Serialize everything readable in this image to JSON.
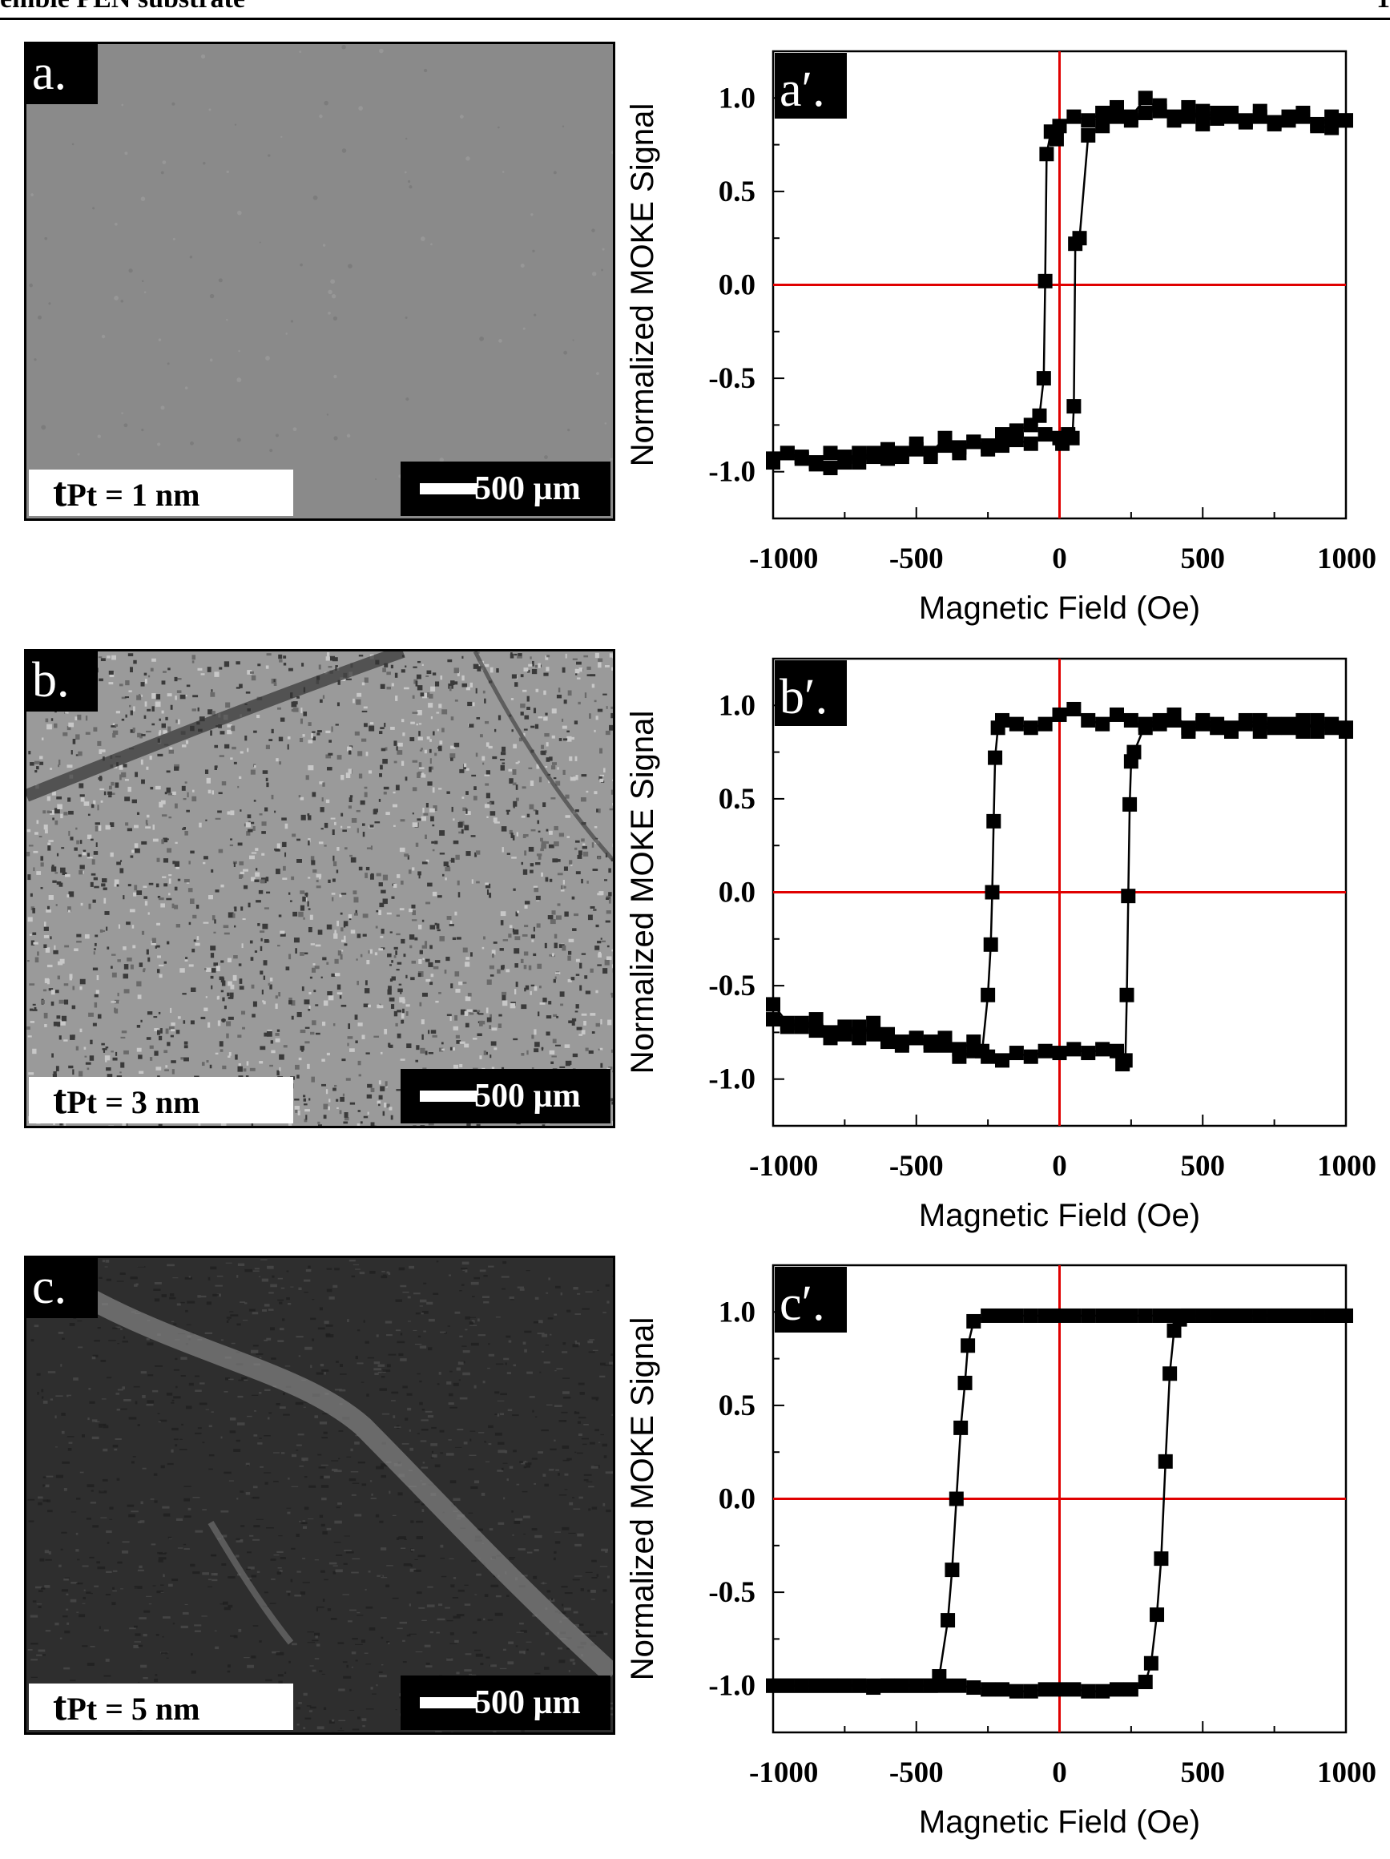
{
  "header": {
    "left": "emble PEN substrate",
    "right": "1"
  },
  "micrographs": [
    {
      "label": "a.",
      "t_sym": "t",
      "t_sub": "Pt = 1 nm",
      "scale": "500 µm",
      "tone": "smooth"
    },
    {
      "label": "b.",
      "t_sym": "t",
      "t_sub": "Pt = 3 nm",
      "scale": "500 µm",
      "tone": "speckled"
    },
    {
      "label": "c.",
      "t_sym": "t",
      "t_sub": "Pt = 5 nm",
      "scale": "500 µm",
      "tone": "dark"
    }
  ],
  "colors": {
    "axis": "#000000",
    "crosshair": "#e00000",
    "marker": "#000000"
  },
  "chart_data": [
    {
      "type": "scatter",
      "panel_label": "a′.",
      "xlabel": "Magnetic Field (Oe)",
      "ylabel": "Normalized MOKE Signal",
      "xlim": [
        -1000,
        1000
      ],
      "ylim": [
        -1.25,
        1.25
      ],
      "xticks": [
        "-1000",
        "-500",
        "0",
        "500",
        "1000"
      ],
      "yticks": [
        "1.0",
        "0.5",
        "0.0",
        "-0.5",
        "-1.0"
      ],
      "coercive_field": 45,
      "series": [
        {
          "x": [
            -1000,
            -950,
            -900,
            -850,
            -800,
            -750,
            -700,
            -650,
            -600,
            -550,
            -500,
            -450,
            -400,
            -350,
            -300,
            -250,
            -200,
            -150,
            -100,
            -70,
            -55,
            -50,
            -45,
            -30,
            -10,
            0,
            50,
            100,
            150,
            200,
            250,
            300,
            350,
            400,
            450,
            500,
            550,
            600,
            650,
            700,
            750,
            800,
            850,
            900,
            950,
            1000
          ],
          "y": [
            -0.95,
            -0.9,
            -0.93,
            -0.95,
            -0.98,
            -0.95,
            -0.9,
            -0.92,
            -0.88,
            -0.92,
            -0.85,
            -0.9,
            -0.82,
            -0.87,
            -0.84,
            -0.86,
            -0.8,
            -0.78,
            -0.75,
            -0.7,
            -0.5,
            0.02,
            0.7,
            0.82,
            0.78,
            0.85,
            0.9,
            0.88,
            0.92,
            0.95,
            0.9,
            1.0,
            0.93,
            0.88,
            0.9,
            0.93,
            0.89,
            0.92,
            0.87,
            0.9,
            0.86,
            0.88,
            0.9,
            0.85,
            0.84,
            0.88
          ]
        },
        {
          "x": [
            1000,
            950,
            900,
            850,
            800,
            750,
            700,
            650,
            600,
            550,
            500,
            450,
            400,
            350,
            300,
            250,
            200,
            150,
            100,
            70,
            55,
            50,
            45,
            30,
            10,
            0,
            -50,
            -100,
            -150,
            -200,
            -250,
            -300,
            -350,
            -400,
            -450,
            -500,
            -550,
            -600,
            -650,
            -700,
            -750,
            -800,
            -850,
            -900,
            -950,
            -1000
          ],
          "y": [
            0.88,
            0.9,
            0.86,
            0.92,
            0.9,
            0.87,
            0.93,
            0.88,
            0.9,
            0.92,
            0.86,
            0.95,
            0.9,
            0.96,
            0.92,
            0.88,
            0.9,
            0.85,
            0.8,
            0.25,
            0.22,
            -0.65,
            -0.82,
            -0.8,
            -0.85,
            -0.82,
            -0.8,
            -0.85,
            -0.83,
            -0.86,
            -0.88,
            -0.84,
            -0.9,
            -0.86,
            -0.92,
            -0.88,
            -0.9,
            -0.93,
            -0.9,
            -0.95,
            -0.92,
            -0.9,
            -0.96,
            -0.92,
            -0.9,
            -0.93
          ]
        }
      ]
    },
    {
      "type": "scatter",
      "panel_label": "b′.",
      "xlabel": "Magnetic Field (Oe)",
      "ylabel": "Normalized MOKE Signal",
      "xlim": [
        -1000,
        1000
      ],
      "ylim": [
        -1.25,
        1.25
      ],
      "xticks": [
        "-1000",
        "-500",
        "0",
        "500",
        "1000"
      ],
      "yticks": [
        "1.0",
        "0.5",
        "0.0",
        "-0.5",
        "-1.0"
      ],
      "coercive_field": 235,
      "series": [
        {
          "x": [
            -1000,
            -950,
            -900,
            -850,
            -800,
            -750,
            -700,
            -650,
            -600,
            -550,
            -500,
            -450,
            -400,
            -350,
            -300,
            -270,
            -250,
            -240,
            -235,
            -230,
            -225,
            -215,
            -200,
            -150,
            -100,
            -50,
            0,
            50,
            100,
            150,
            200,
            250,
            300,
            350,
            400,
            450,
            500,
            550,
            600,
            650,
            700,
            750,
            800,
            850,
            900,
            950,
            1000
          ],
          "y": [
            -0.6,
            -0.7,
            -0.72,
            -0.68,
            -0.75,
            -0.72,
            -0.78,
            -0.7,
            -0.76,
            -0.8,
            -0.78,
            -0.82,
            -0.78,
            -0.84,
            -0.8,
            -0.85,
            -0.55,
            -0.28,
            0.0,
            0.38,
            0.72,
            0.88,
            0.92,
            0.9,
            0.88,
            0.9,
            0.95,
            0.98,
            0.92,
            0.9,
            0.95,
            0.92,
            0.88,
            0.9,
            0.92,
            0.86,
            0.9,
            0.88,
            0.86,
            0.9,
            0.92,
            0.88,
            0.9,
            0.86,
            0.92,
            0.88,
            0.86
          ]
        },
        {
          "x": [
            1000,
            950,
            900,
            850,
            800,
            750,
            700,
            650,
            600,
            550,
            500,
            450,
            400,
            350,
            300,
            260,
            250,
            245,
            240,
            235,
            230,
            220,
            200,
            150,
            100,
            50,
            0,
            -50,
            -100,
            -150,
            -200,
            -250,
            -300,
            -350,
            -400,
            -450,
            -500,
            -550,
            -600,
            -650,
            -700,
            -750,
            -800,
            -850,
            -900,
            -950,
            -1000
          ],
          "y": [
            0.88,
            0.9,
            0.86,
            0.92,
            0.88,
            0.9,
            0.86,
            0.92,
            0.88,
            0.9,
            0.92,
            0.88,
            0.95,
            0.92,
            0.9,
            0.75,
            0.7,
            0.47,
            -0.02,
            -0.55,
            -0.9,
            -0.92,
            -0.85,
            -0.84,
            -0.86,
            -0.84,
            -0.86,
            -0.85,
            -0.88,
            -0.86,
            -0.9,
            -0.88,
            -0.85,
            -0.88,
            -0.82,
            -0.8,
            -0.78,
            -0.82,
            -0.8,
            -0.76,
            -0.72,
            -0.76,
            -0.78,
            -0.74,
            -0.7,
            -0.72,
            -0.68
          ]
        }
      ]
    },
    {
      "type": "scatter",
      "panel_label": "c′.",
      "xlabel": "Magnetic Field (Oe)",
      "ylabel": "Normalized MOKE Signal",
      "xlim": [
        -1000,
        1000
      ],
      "ylim": [
        -1.25,
        1.25
      ],
      "xticks": [
        "-1000",
        "-500",
        "0",
        "500",
        "1000"
      ],
      "yticks": [
        "1.0",
        "0.5",
        "0.0",
        "-0.5",
        "-1.0"
      ],
      "coercive_field": 360,
      "series": [
        {
          "x": [
            -1000,
            -950,
            -900,
            -850,
            -800,
            -750,
            -700,
            -650,
            -600,
            -550,
            -500,
            -450,
            -420,
            -390,
            -375,
            -360,
            -345,
            -330,
            -320,
            -300,
            -250,
            -200,
            -150,
            -100,
            -50,
            0,
            50,
            100,
            150,
            200,
            250,
            300,
            350,
            400,
            450,
            500,
            550,
            600,
            650,
            700,
            750,
            800,
            850,
            900,
            950,
            1000
          ],
          "y": [
            -1.0,
            -1.0,
            -1.0,
            -1.0,
            -1.0,
            -1.0,
            -1.0,
            -1.01,
            -1.0,
            -1.0,
            -1.0,
            -1.0,
            -0.95,
            -0.65,
            -0.38,
            0.0,
            0.38,
            0.62,
            0.82,
            0.95,
            0.98,
            0.98,
            0.98,
            0.98,
            0.98,
            0.98,
            0.98,
            0.98,
            0.98,
            0.98,
            0.98,
            0.98,
            0.98,
            0.98,
            0.98,
            0.98,
            0.98,
            0.98,
            0.98,
            0.98,
            0.98,
            0.98,
            0.98,
            0.98,
            0.98,
            0.98
          ]
        },
        {
          "x": [
            1000,
            950,
            900,
            850,
            800,
            750,
            700,
            650,
            600,
            550,
            500,
            450,
            420,
            400,
            385,
            370,
            355,
            340,
            320,
            300,
            250,
            200,
            150,
            100,
            50,
            0,
            -50,
            -100,
            -150,
            -200,
            -250,
            -300,
            -350,
            -400,
            -450,
            -500,
            -550,
            -600,
            -650,
            -700,
            -750,
            -800,
            -850,
            -900,
            -950,
            -1000
          ],
          "y": [
            0.98,
            0.98,
            0.98,
            0.98,
            0.98,
            0.98,
            0.98,
            0.98,
            0.98,
            0.98,
            0.98,
            0.98,
            0.96,
            0.9,
            0.67,
            0.2,
            -0.32,
            -0.62,
            -0.88,
            -0.98,
            -1.02,
            -1.02,
            -1.03,
            -1.03,
            -1.02,
            -1.02,
            -1.02,
            -1.03,
            -1.03,
            -1.02,
            -1.02,
            -1.01,
            -1.0,
            -1.0,
            -1.0,
            -1.0,
            -1.0,
            -1.0,
            -1.0,
            -1.0,
            -1.0,
            -1.0,
            -1.0,
            -1.0,
            -1.0,
            -1.0
          ]
        }
      ]
    }
  ]
}
